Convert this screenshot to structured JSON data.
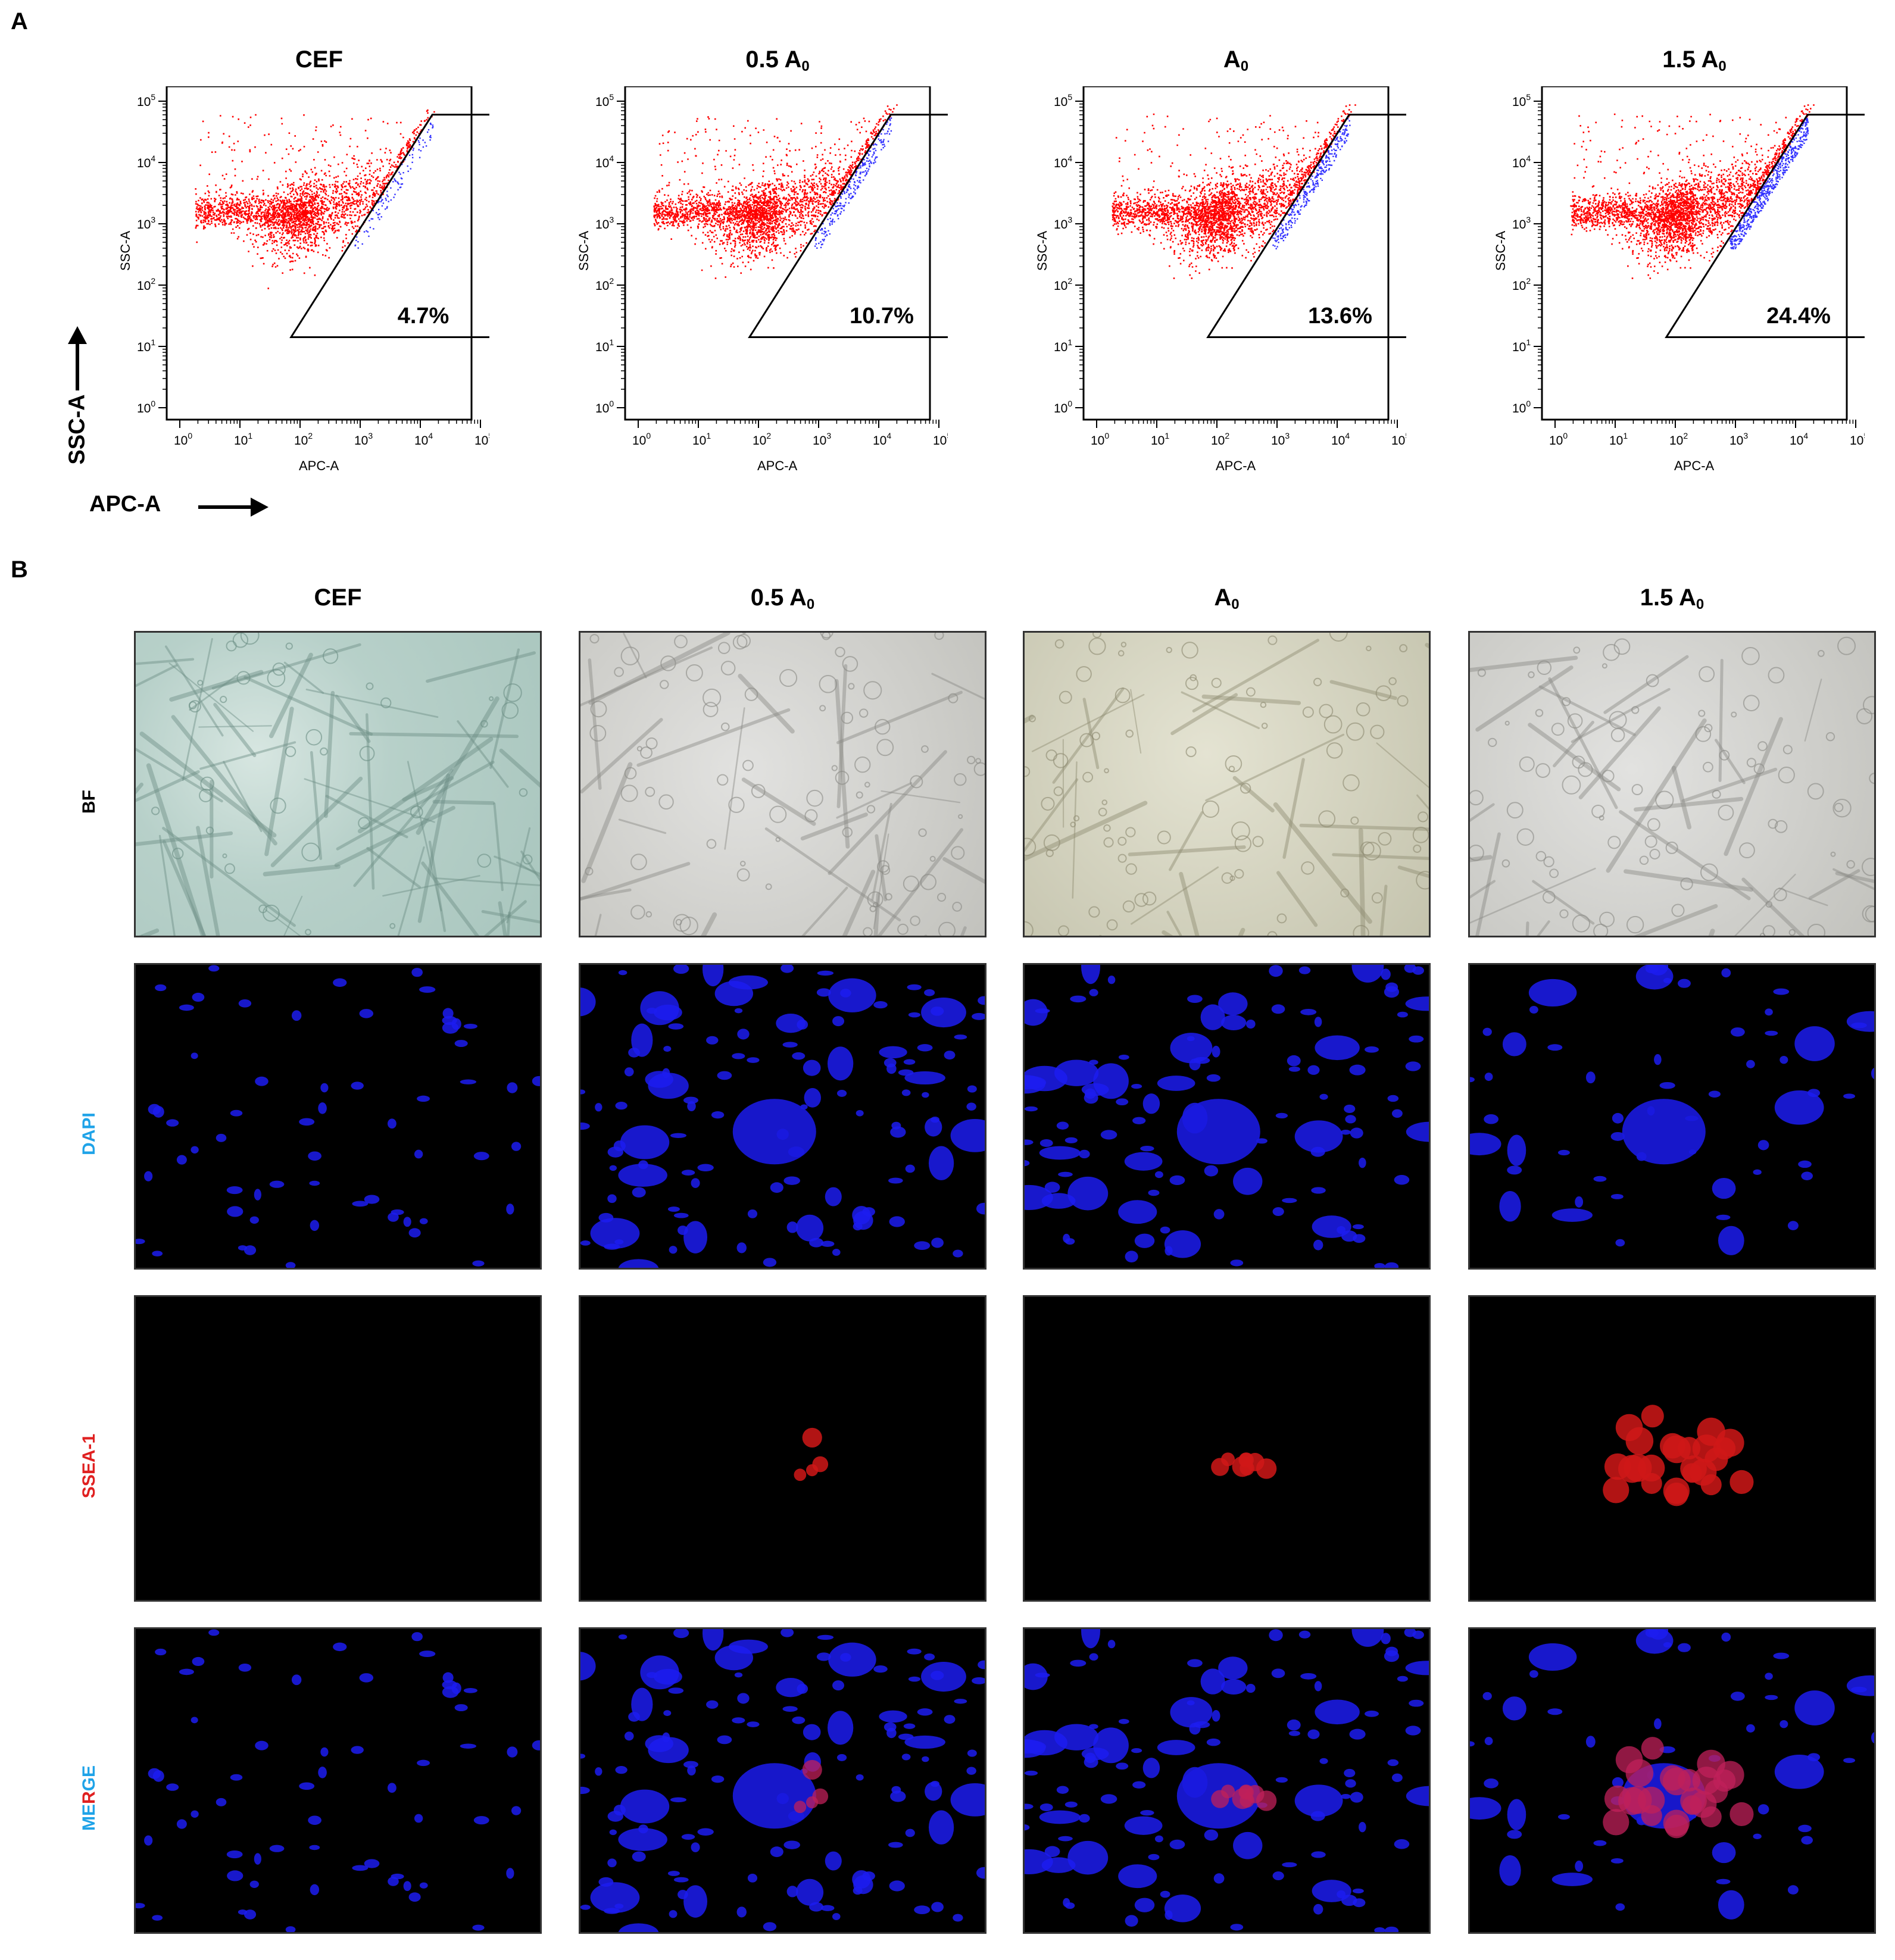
{
  "panel_a": {
    "letter": "A",
    "plots": [
      {
        "title": "CEF",
        "sub": "",
        "gate_percent": "4.7%",
        "blue_fraction": 0.047
      },
      {
        "title": "0.5 A",
        "sub": "0",
        "gate_percent": "10.7%",
        "blue_fraction": 0.107
      },
      {
        "title": "A",
        "sub": "0",
        "gate_percent": "13.6%",
        "blue_fraction": 0.136
      },
      {
        "title": "1.5 A",
        "sub": "0",
        "gate_percent": "24.4%",
        "blue_fraction": 0.244
      }
    ],
    "x_axis_label": "APC-A",
    "y_axis_label": "SSC-A",
    "tick_base": "10",
    "tick_exponents": [
      "0",
      "1",
      "2",
      "3",
      "4",
      "5"
    ],
    "big_x_label": "APC-A",
    "big_y_label": "SSC-A",
    "colors": {
      "events": "#ff0000",
      "gated_events": "#3333ff"
    }
  },
  "panel_b": {
    "letter": "B",
    "columns": [
      {
        "title": "CEF",
        "sub": ""
      },
      {
        "title": "0.5 A",
        "sub": "0"
      },
      {
        "title": "A",
        "sub": "0"
      },
      {
        "title": "1.5 A",
        "sub": "0"
      }
    ],
    "rows": [
      {
        "label": "BF",
        "color": "#000000"
      },
      {
        "label": "DAPI",
        "color": "#1fa3e8"
      },
      {
        "label": "SSEA-1",
        "color": "#e02020"
      },
      {
        "label_parts": [
          "ME",
          "R",
          "GE"
        ],
        "colors": [
          "#1fa3e8",
          "#e02020",
          "#1fa3e8"
        ]
      }
    ]
  }
}
